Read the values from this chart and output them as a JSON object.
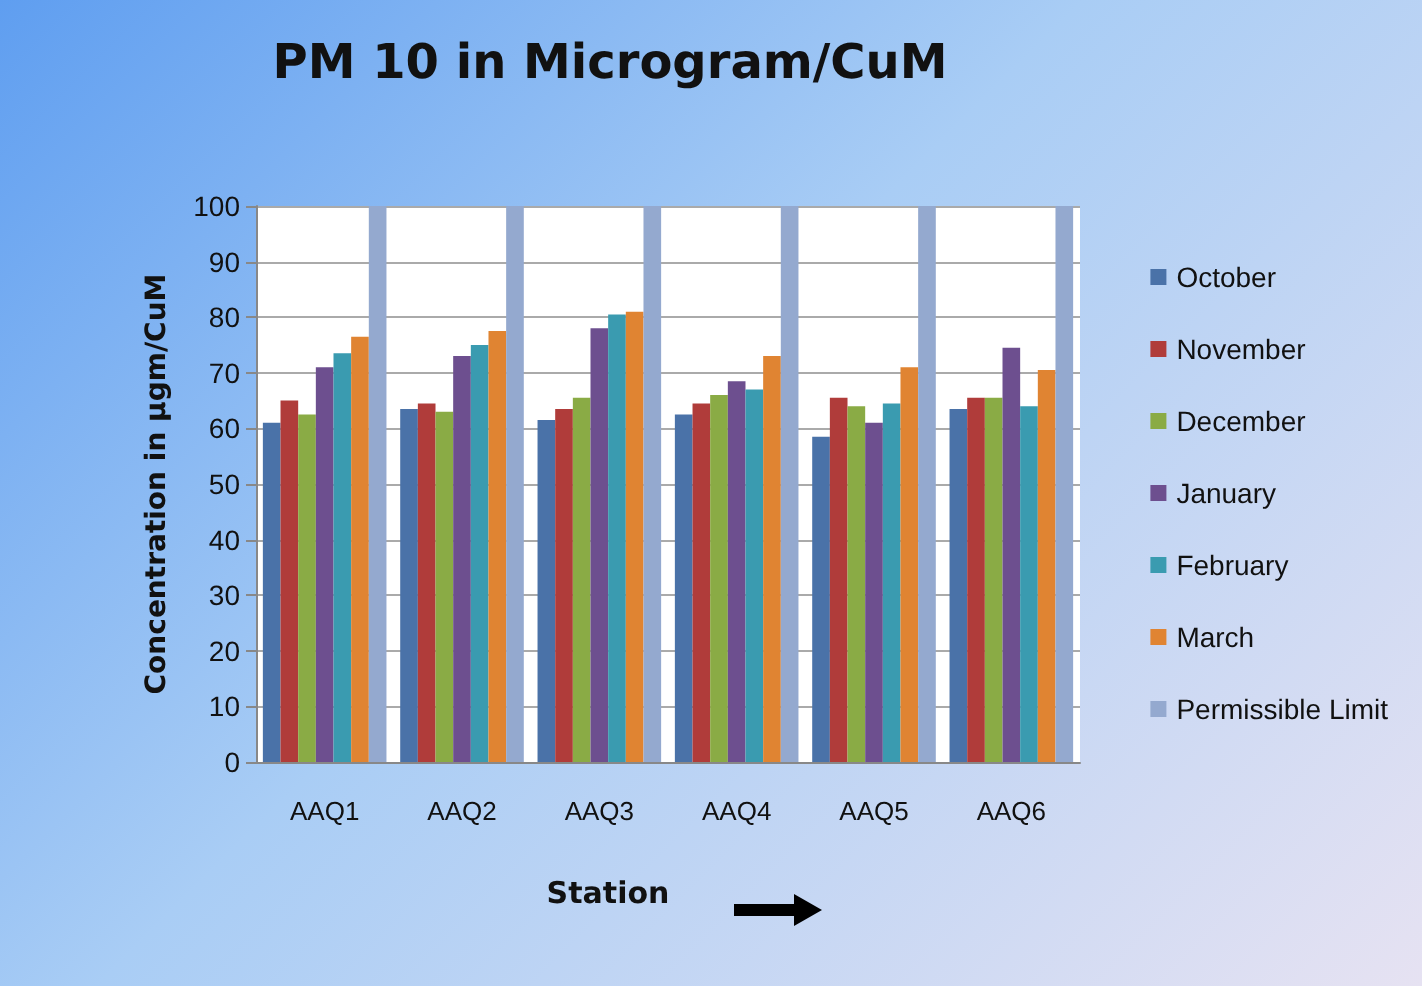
{
  "chart_data": {
    "type": "bar",
    "title": "PM 10 in Microgram/CuM",
    "xlabel": "Station",
    "ylabel": "Concentration in µgm/CuM",
    "categories": [
      "AAQ1",
      "AAQ2",
      "AAQ3",
      "AAQ4",
      "AAQ5",
      "AAQ6"
    ],
    "series": [
      {
        "name": "October",
        "color": "#4a72a8",
        "values": [
          61,
          63.5,
          61.5,
          62.5,
          58.5,
          63.5
        ]
      },
      {
        "name": "November",
        "color": "#b03c3a",
        "values": [
          65,
          64.5,
          63.5,
          64.5,
          65.5,
          65.5
        ]
      },
      {
        "name": "December",
        "color": "#8aab45",
        "values": [
          62.5,
          63,
          65.5,
          66,
          64,
          65.5
        ]
      },
      {
        "name": "January",
        "color": "#6d4f8f",
        "values": [
          71,
          73,
          78,
          68.5,
          61,
          74.5
        ]
      },
      {
        "name": "February",
        "color": "#3a9bb0",
        "values": [
          73.5,
          75,
          80.5,
          67,
          64.5,
          64
        ]
      },
      {
        "name": "March",
        "color": "#e08432",
        "values": [
          76.5,
          77.5,
          81,
          73,
          71,
          70.5
        ]
      },
      {
        "name": "Permissible Limit",
        "color": "#94a9cf",
        "values": [
          100,
          100,
          100,
          100,
          100,
          100
        ]
      }
    ],
    "ylim": [
      0,
      100
    ],
    "yticks": [
      0,
      10,
      20,
      30,
      40,
      50,
      60,
      70,
      80,
      90,
      100
    ],
    "grid": "y",
    "legend": "right"
  }
}
